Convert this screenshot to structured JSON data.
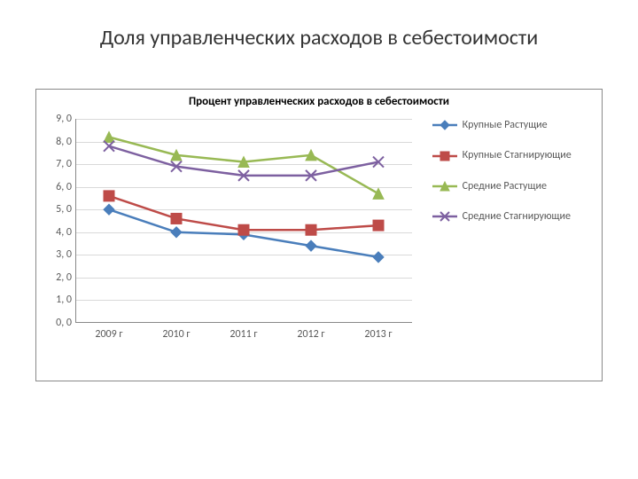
{
  "page_title": "Доля управленческих расходов в себестоимости",
  "chart": {
    "type": "line",
    "title": "Процент управленческих расходов в себестоимости",
    "title_fontsize": 13,
    "title_fontweight": "bold",
    "background_color": "#ffffff",
    "border_color": "#888888",
    "grid_color": "#d9d9d9",
    "axis_color": "#888888",
    "tick_fontsize": 12,
    "tick_color": "#595959",
    "x_categories": [
      "2009 г",
      "2010 г",
      "2011 г",
      "2012 г",
      "2013 г"
    ],
    "ylim": [
      0.0,
      9.0
    ],
    "ytick_step": 1.0,
    "ytick_labels": [
      "0, 0",
      "1, 0",
      "2, 0",
      "3, 0",
      "4, 0",
      "5, 0",
      "6, 0",
      "7, 0",
      "8, 0",
      "9, 0"
    ],
    "line_width": 2.5,
    "marker_size": 6,
    "series": [
      {
        "name": "Крупные Растущие",
        "color": "#4a7ebb",
        "marker": "diamond",
        "values": [
          5.0,
          4.0,
          3.9,
          3.4,
          2.9
        ]
      },
      {
        "name": "Крупные Стагнирующие",
        "color": "#be4b48",
        "marker": "square",
        "values": [
          5.6,
          4.6,
          4.1,
          4.1,
          4.3
        ]
      },
      {
        "name": "Средние Растущие",
        "color": "#98b954",
        "marker": "triangle",
        "values": [
          8.2,
          7.4,
          7.1,
          7.4,
          5.7
        ]
      },
      {
        "name": "Средние Стагнирующие",
        "color": "#7d60a0",
        "marker": "x",
        "values": [
          7.8,
          6.9,
          6.5,
          6.5,
          7.1
        ]
      }
    ],
    "legend_fontsize": 12,
    "legend_color": "#595959"
  }
}
